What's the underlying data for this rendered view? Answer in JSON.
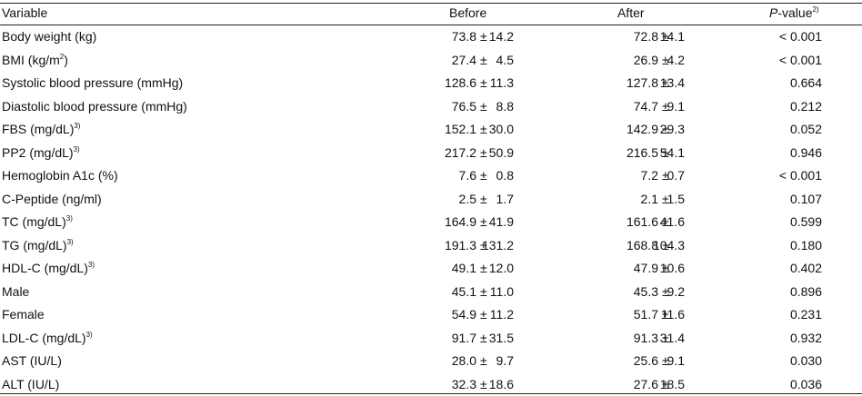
{
  "header": {
    "variable": "Variable",
    "before": "Before",
    "after": "After",
    "p_italic": "P",
    "p_rest": "-value",
    "p_sup": "2)"
  },
  "rows": [
    {
      "label": "Body weight (kg)",
      "sup": "",
      "before_mean": "73.8",
      "before_sd": "14.2",
      "after_mean": "72.8",
      "after_sd": "14.1",
      "p": "< 0.001"
    },
    {
      "label": "BMI (kg/m",
      "sup": "2",
      "label_tail": ")",
      "before_mean": "27.4",
      "before_sd": "4.5",
      "after_mean": "26.9",
      "after_sd": "4.2",
      "p": "< 0.001"
    },
    {
      "label": "Systolic blood pressure (mmHg)",
      "sup": "",
      "before_mean": "128.6",
      "before_sd": "11.3",
      "after_mean": "127.8",
      "after_sd": "13.4",
      "p": "0.664"
    },
    {
      "label": "Diastolic blood pressure (mmHg)",
      "sup": "",
      "before_mean": "76.5",
      "before_sd": "8.8",
      "after_mean": "74.7",
      "after_sd": "9.1",
      "p": "0.212"
    },
    {
      "label": "FBS (mg/dL)",
      "sup": "3)",
      "before_mean": "152.1",
      "before_sd": "30.0",
      "after_mean": "142.9",
      "after_sd": "29.3",
      "p": "0.052"
    },
    {
      "label": "PP2 (mg/dL)",
      "sup": "3)",
      "before_mean": "217.2",
      "before_sd": "50.9",
      "after_mean": "216.5",
      "after_sd": "54.1",
      "p": "0.946"
    },
    {
      "label": "Hemoglobin A1c (%)",
      "sup": "",
      "before_mean": "7.6",
      "before_sd": "0.8",
      "after_mean": "7.2",
      "after_sd": "0.7",
      "p": "< 0.001"
    },
    {
      "label": "C-Peptide (ng/ml)",
      "sup": "",
      "before_mean": "2.5",
      "before_sd": "1.7",
      "after_mean": "2.1",
      "after_sd": "1.5",
      "p": "0.107"
    },
    {
      "label": "TC (mg/dL)",
      "sup": "3)",
      "before_mean": "164.9",
      "before_sd": "41.9",
      "after_mean": "161.6",
      "after_sd": "41.6",
      "p": "0.599"
    },
    {
      "label": "TG (mg/dL)",
      "sup": "3)",
      "before_mean": "191.3",
      "before_sd": "131.2",
      "after_mean": "168.8",
      "after_sd": "104.3",
      "p": "0.180"
    },
    {
      "label": "HDL-C (mg/dL)",
      "sup": "3)",
      "before_mean": "49.1",
      "before_sd": "12.0",
      "after_mean": "47.9",
      "after_sd": "10.6",
      "p": "0.402"
    },
    {
      "label": "Male",
      "sup": "",
      "before_mean": "45.1",
      "before_sd": "11.0",
      "after_mean": "45.3",
      "after_sd": "9.2",
      "p": "0.896"
    },
    {
      "label": "Female",
      "sup": "",
      "before_mean": "54.9",
      "before_sd": "11.2",
      "after_mean": "51.7",
      "after_sd": "11.6",
      "p": "0.231"
    },
    {
      "label": "LDL-C (mg/dL)",
      "sup": "3)",
      "before_mean": "91.7",
      "before_sd": "31.5",
      "after_mean": "91.3",
      "after_sd": "31.4",
      "p": "0.932"
    },
    {
      "label": "AST (IU/L)",
      "sup": "",
      "before_mean": "28.0",
      "before_sd": "9.7",
      "after_mean": "25.6",
      "after_sd": "9.1",
      "p": "0.030"
    },
    {
      "label": "ALT (IU/L)",
      "sup": "",
      "before_mean": "32.3",
      "before_sd": "18.6",
      "after_mean": "27.6",
      "after_sd": "18.5",
      "p": "0.036"
    }
  ],
  "pm_symbol": "±"
}
